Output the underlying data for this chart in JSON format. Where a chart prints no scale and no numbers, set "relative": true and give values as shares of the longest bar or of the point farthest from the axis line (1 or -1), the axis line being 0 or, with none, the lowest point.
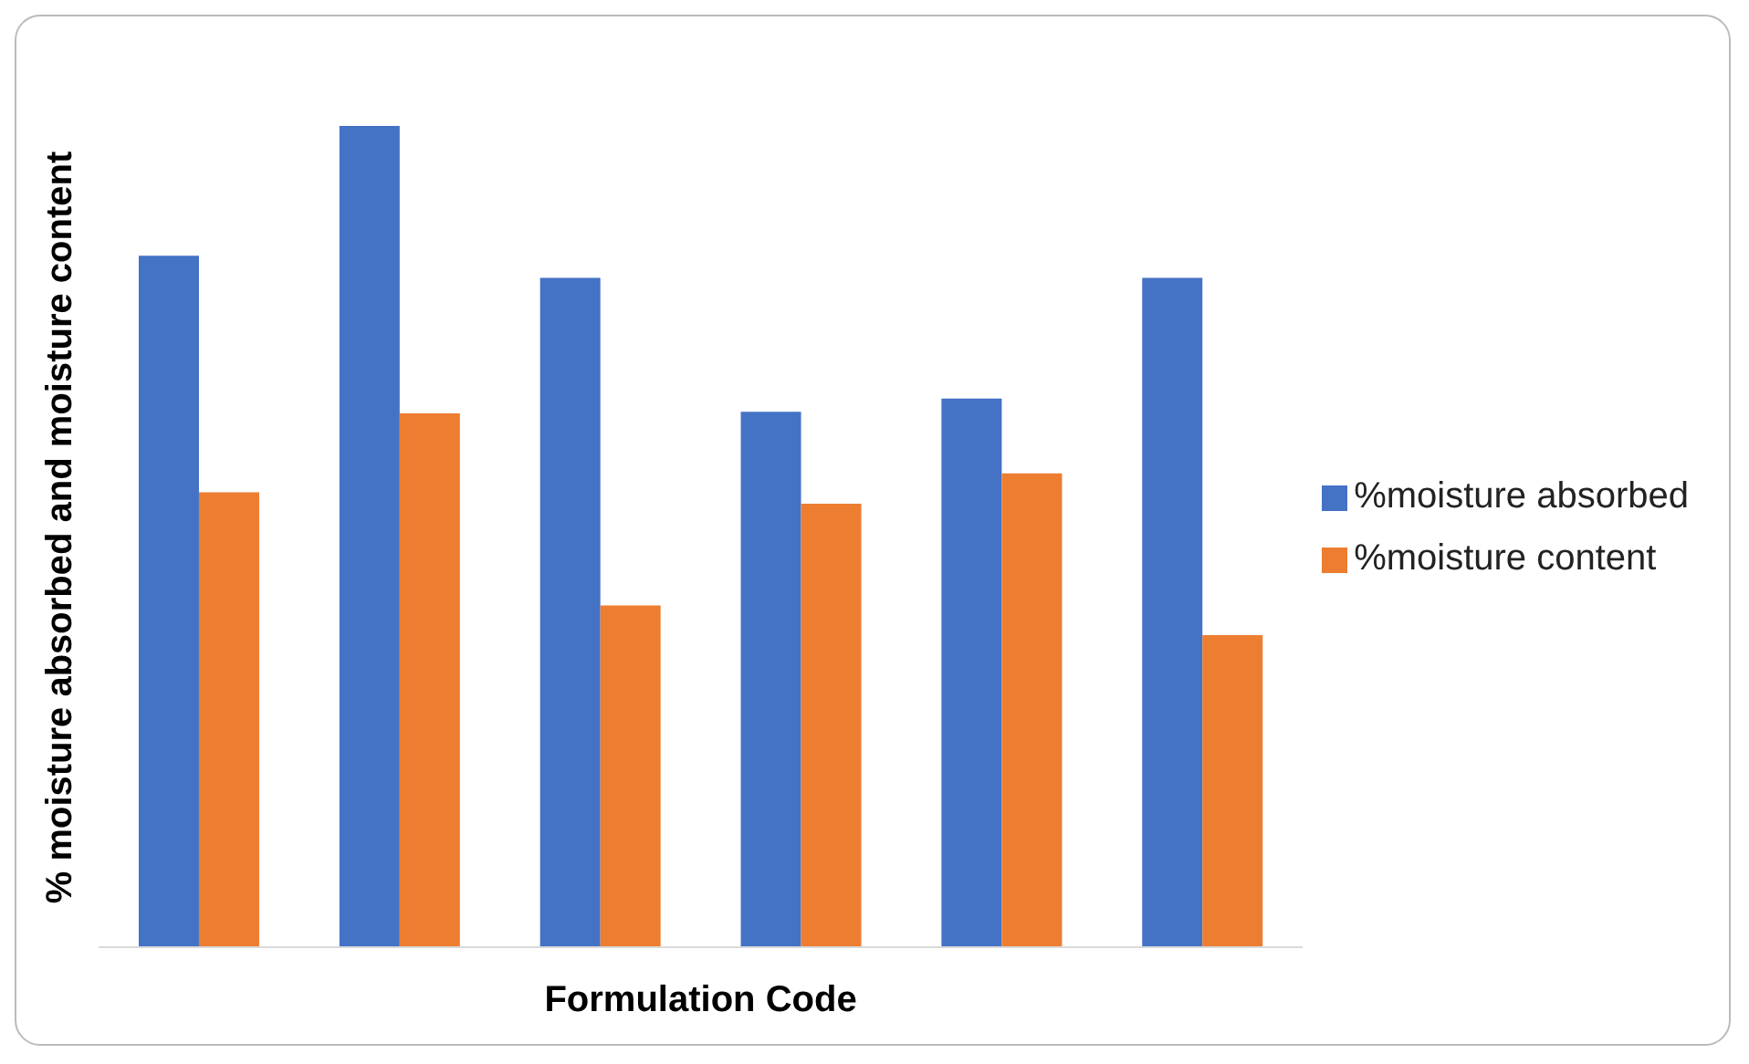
{
  "chart_data": {
    "type": "bar",
    "relative": true,
    "xlabel": "Formulation Code",
    "ylabel": "% moisture absorbed and moisture content",
    "legend": "right",
    "categories": [
      null,
      null,
      null,
      null,
      null,
      null
    ],
    "series": [
      {
        "name": "%moisture absorbed",
        "color": "#4472c4",
        "values": [
          0.842,
          1,
          0.815,
          0.652,
          0.668,
          0.815
        ]
      },
      {
        "name": "%moisture content",
        "color": "#ed7d31",
        "values": [
          0.554,
          0.65,
          0.416,
          0.54,
          0.577,
          0.38
        ]
      }
    ]
  }
}
